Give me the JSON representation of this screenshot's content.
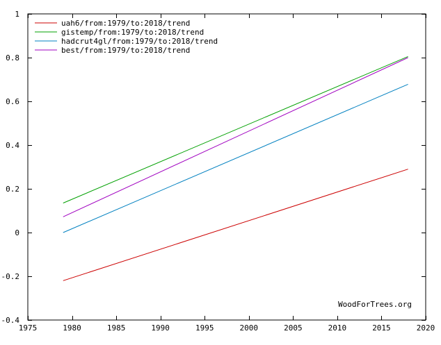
{
  "chart_data": {
    "type": "line",
    "title": "",
    "xlabel": "",
    "ylabel": "",
    "xlim": [
      1975,
      2020
    ],
    "ylim": [
      -0.4,
      1.0
    ],
    "x_ticks": [
      1975,
      1980,
      1985,
      1990,
      1995,
      2000,
      2005,
      2010,
      2015,
      2020
    ],
    "x_tick_labels": [
      "1975",
      "1980",
      "1985",
      "1990",
      "1995",
      "2000",
      "2005",
      "2010",
      "2015",
      "2020"
    ],
    "y_ticks": [
      -0.4,
      -0.2,
      0,
      0.2,
      0.4,
      0.6,
      0.8,
      1
    ],
    "y_tick_labels": [
      "-0.4",
      "-0.2",
      "0",
      "0.2",
      "0.4",
      "0.6",
      "0.8",
      "1"
    ],
    "grid": false,
    "legend_position": "top-left",
    "series": [
      {
        "name": "uah6/from:1979/to:2018/trend",
        "color": "#cc0000",
        "x": [
          1979,
          2018
        ],
        "y": [
          -0.22,
          0.29
        ]
      },
      {
        "name": "gistemp/from:1979/to:2018/trend",
        "color": "#00a000",
        "x": [
          1979,
          2018
        ],
        "y": [
          0.135,
          0.805
        ]
      },
      {
        "name": "hadcrut4gl/from:1979/to:2018/trend",
        "color": "#0080c0",
        "x": [
          1979,
          2018
        ],
        "y": [
          0.0,
          0.678
        ]
      },
      {
        "name": "best/from:1979/to:2018/trend",
        "color": "#a000c0",
        "x": [
          1979,
          2018
        ],
        "y": [
          0.072,
          0.8
        ]
      }
    ],
    "credit": "WoodForTrees.org"
  }
}
